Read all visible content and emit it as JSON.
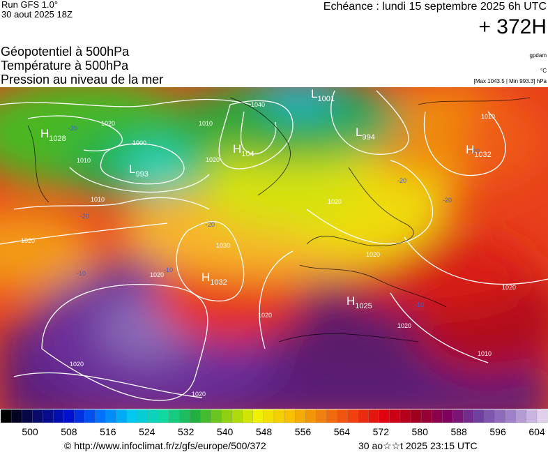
{
  "header": {
    "run": "Run GFS 1.0°",
    "run_date": "30 aout 2025 18Z",
    "valid": "Echéance : lundi 15 septembre 2025 6h UTC",
    "lead": "+ 372H"
  },
  "titles": [
    "Géopotentiel à 500hPa",
    "Température à 500hPa",
    "Pression au niveau de la mer"
  ],
  "units": [
    "gpdam",
    "°C",
    "[Max 1043.5 | Min 993.3] hPa"
  ],
  "map": {
    "pressure_centers": [
      {
        "type": "H",
        "value": "1028"
      },
      {
        "type": "L",
        "value": "993"
      },
      {
        "type": "L",
        "value": "1001"
      },
      {
        "type": "L",
        "value": "994"
      },
      {
        "type": "H",
        "value": "104"
      },
      {
        "type": "H",
        "value": "1032"
      },
      {
        "type": "H",
        "value": "1032"
      },
      {
        "type": "H",
        "value": "1025"
      }
    ],
    "isobar_labels": [
      "1020",
      "1010",
      "1000",
      "1020",
      "1010",
      "1020",
      "1030",
      "1020",
      "1020",
      "1020",
      "1020",
      "1010",
      "1020",
      "1020",
      "1040",
      "1020",
      "1010",
      "1020",
      "1010"
    ],
    "temperature_labels": [
      "-20",
      "-20",
      "-20",
      "-20",
      "-20",
      "-20",
      "-10",
      "-10",
      "-10"
    ]
  },
  "colorbar": {
    "ticks": [
      "500",
      "508",
      "516",
      "524",
      "532",
      "540",
      "548",
      "556",
      "564",
      "572",
      "580",
      "588",
      "596",
      "604"
    ]
  },
  "footer": {
    "source": "© http://www.infoclimat.fr/z/gfs/europe/500/372",
    "generated": "30 ao☆☆t 2025 23:15 UTC"
  }
}
